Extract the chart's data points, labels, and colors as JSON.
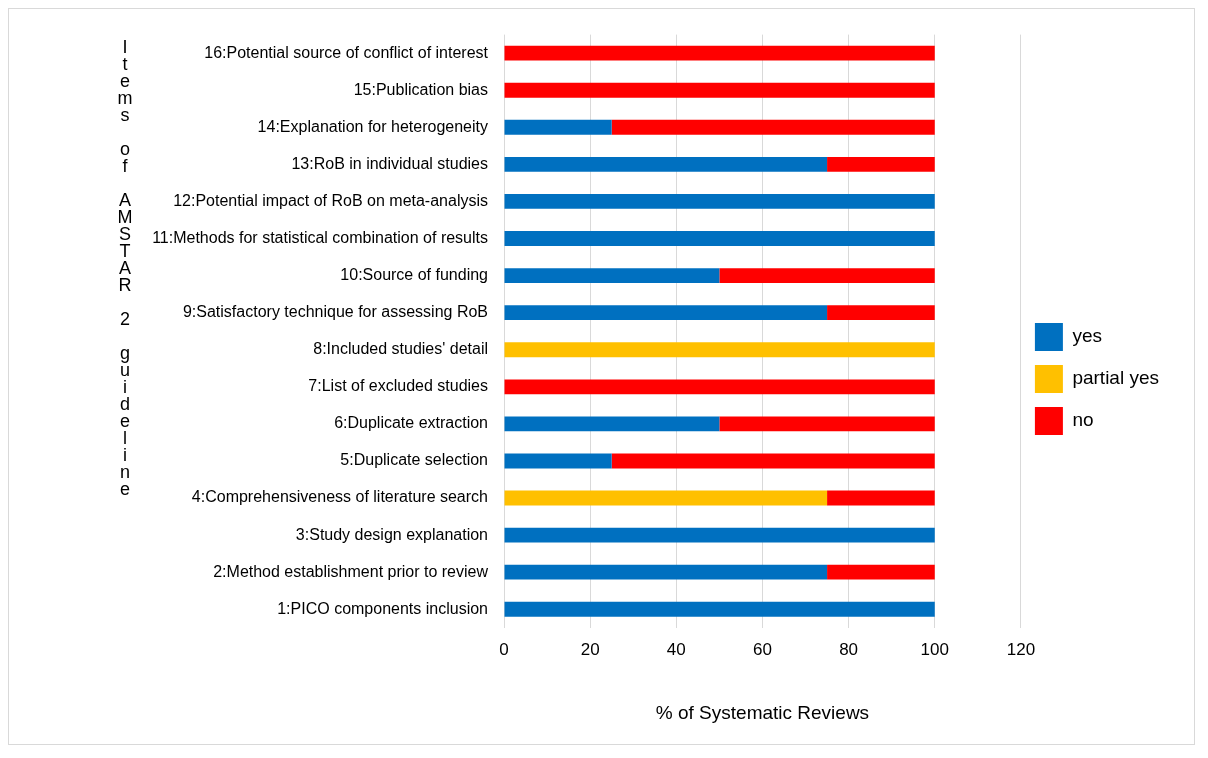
{
  "chart_data": {
    "type": "bar",
    "orientation": "horizontal",
    "stacked": true,
    "xlabel": "% of Systematic Reviews",
    "ylabel": "Items of AMSTAR 2 guideline",
    "categories": [
      "16:Potential source of conflict of interest",
      "15:Publication bias",
      "14:Explanation for heterogeneity",
      "13:RoB in individual studies",
      "12:Potential impact of RoB on meta-analysis",
      "11:Methods for statistical combination of results",
      "10:Source of funding",
      "9:Satisfactory technique for assessing RoB",
      "8:Included studies' detail",
      "7:List of excluded studies",
      "6:Duplicate extraction",
      "5:Duplicate selection",
      "4:Comprehensiveness of literature search",
      "3:Study design explanation",
      "2:Method establishment prior to review",
      "1:PICO components inclusion"
    ],
    "series": [
      {
        "name": "yes",
        "color": "#0070c0",
        "values": [
          0,
          0,
          25,
          75,
          100,
          100,
          50,
          75,
          0,
          0,
          50,
          25,
          0,
          100,
          75,
          100
        ]
      },
      {
        "name": "partial yes",
        "color": "#ffc000",
        "values": [
          0,
          0,
          0,
          0,
          0,
          0,
          0,
          0,
          100,
          0,
          0,
          0,
          75,
          0,
          0,
          0
        ]
      },
      {
        "name": "no",
        "color": "#ff0000",
        "values": [
          100,
          100,
          75,
          25,
          0,
          0,
          50,
          25,
          0,
          100,
          50,
          75,
          25,
          0,
          25,
          0
        ]
      }
    ],
    "xlim": [
      0,
      120
    ],
    "xticks": [
      0,
      20,
      40,
      60,
      80,
      100,
      120
    ],
    "grid": "x",
    "legend": "right"
  }
}
